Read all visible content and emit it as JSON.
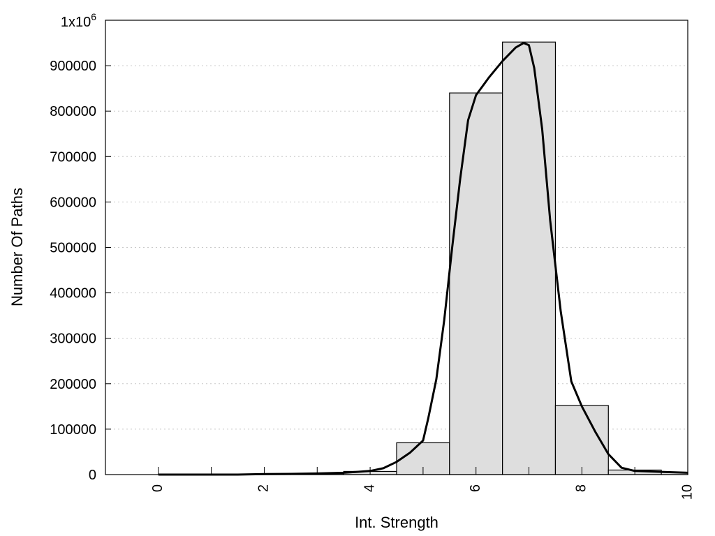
{
  "chart_data": {
    "type": "bar",
    "xlabel": "Int. Strength",
    "ylabel": "Number Of Paths",
    "xlim": [
      -1,
      10
    ],
    "ylim": [
      0,
      1000000
    ],
    "x_ticks": [
      0,
      2,
      4,
      6,
      8,
      10
    ],
    "x_tick_labels": [
      "0",
      "2",
      "4",
      "6",
      "8",
      "10"
    ],
    "y_ticks": [
      0,
      100000,
      200000,
      300000,
      400000,
      500000,
      600000,
      700000,
      800000,
      900000
    ],
    "y_tick_labels": [
      "0",
      "100000",
      "200000",
      "300000",
      "400000",
      "500000",
      "600000",
      "700000",
      "800000",
      "900000"
    ],
    "y_top_label_base": "1x10",
    "y_top_label_exp": "6",
    "grid": "horizontal-dotted",
    "series": [
      {
        "type": "histogram",
        "bin_width": 1,
        "x": [
          0,
          1,
          2,
          3,
          4,
          5,
          6,
          7,
          8,
          9,
          10
        ],
        "values": [
          0,
          0,
          1000,
          2000,
          7000,
          70000,
          840000,
          952000,
          152000,
          10000,
          5000
        ]
      },
      {
        "type": "line",
        "x": [
          0,
          0.5,
          1,
          1.5,
          2,
          2.5,
          3,
          3.5,
          4,
          4.25,
          4.5,
          4.75,
          5,
          5.1,
          5.25,
          5.4,
          5.55,
          5.7,
          5.85,
          6,
          6.25,
          6.5,
          6.75,
          6.9,
          7,
          7.1,
          7.25,
          7.4,
          7.6,
          7.8,
          8,
          8.25,
          8.5,
          8.75,
          9,
          9.5,
          10
        ],
        "values": [
          0,
          0,
          0,
          0,
          1000,
          1500,
          2500,
          4000,
          8000,
          14000,
          28000,
          48000,
          75000,
          125000,
          210000,
          340000,
          500000,
          650000,
          780000,
          835000,
          875000,
          910000,
          940000,
          950000,
          945000,
          895000,
          760000,
          560000,
          360000,
          205000,
          150000,
          95000,
          45000,
          15000,
          8000,
          6000,
          4000
        ]
      }
    ]
  }
}
